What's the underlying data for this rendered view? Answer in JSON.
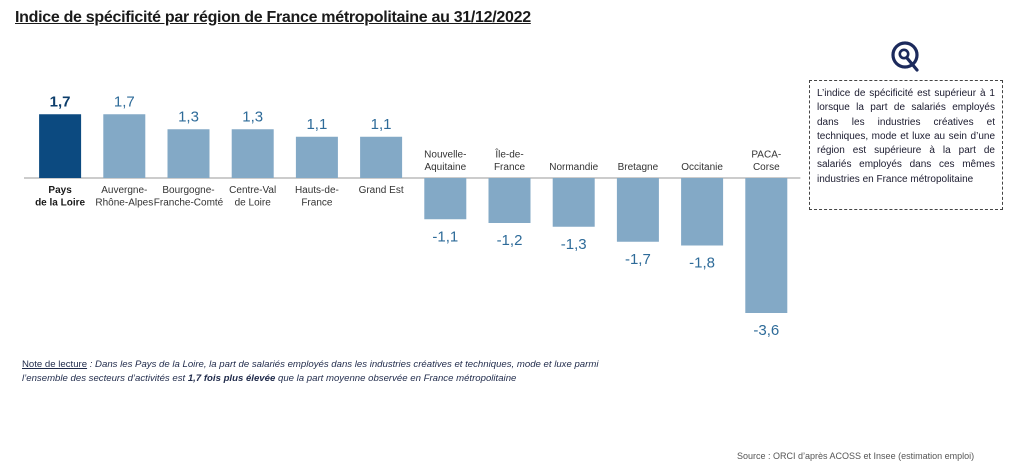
{
  "title": "Indice de spécificité par région de France métropolitaine au 31/12/2022",
  "info_box": "L’indice de spécificité est supérieur à 1 lorsque la part de salariés employés dans les industries créatives et techniques, mode et luxe au sein d’une région est supérieure à la part de salariés employés dans ces mêmes industries en France métropolitaine",
  "note": {
    "label": "Note de lecture",
    "text_before": " : Dans les Pays de la Loire, la part de salariés employés dans les industries créatives et techniques, mode et luxe parmi l’ensemble des secteurs d’activités est ",
    "bold": "1,7 fois plus élevée",
    "text_after": " que la part moyenne observée en France métropolitaine"
  },
  "source": "Source : ORCI d’après ACOSS et Insee (estimation emploi)",
  "logo_icon": "orci-logo-icon",
  "colors": {
    "highlight": "#0c4a80",
    "bar": "#83a9c6",
    "value_highlight": "#0c3d6b",
    "value": "#2e6b99"
  },
  "chart_data": {
    "type": "bar",
    "categories": [
      [
        "Pays",
        "de la Loire"
      ],
      [
        "Auvergne-",
        "Rhône-Alpes"
      ],
      [
        "Bourgogne-",
        "Franche-Comté"
      ],
      [
        "Centre-Val",
        "de Loire"
      ],
      [
        "Hauts-de-",
        "France"
      ],
      [
        "Grand Est"
      ],
      [
        "Nouvelle-",
        "Aquitaine"
      ],
      [
        "Île-de-",
        "France"
      ],
      [
        "Normandie"
      ],
      [
        "Bretagne"
      ],
      [
        "Occitanie"
      ],
      [
        "PACA-",
        "Corse"
      ]
    ],
    "values": [
      1.7,
      1.7,
      1.3,
      1.3,
      1.1,
      1.1,
      -1.1,
      -1.2,
      -1.3,
      -1.7,
      -1.8,
      -3.6
    ],
    "value_labels": [
      "1,7",
      "1,7",
      "1,3",
      "1,3",
      "1,1",
      "1,1",
      "-1,1",
      "-1,2",
      "-1,3",
      "-1,7",
      "-1,8",
      "-3,6"
    ],
    "highlight_index": 0,
    "title": "Indice de spécificité par région de France métropolitaine au 31/12/2022",
    "xlabel": "",
    "ylabel": "",
    "grid": false,
    "legend": "none"
  }
}
